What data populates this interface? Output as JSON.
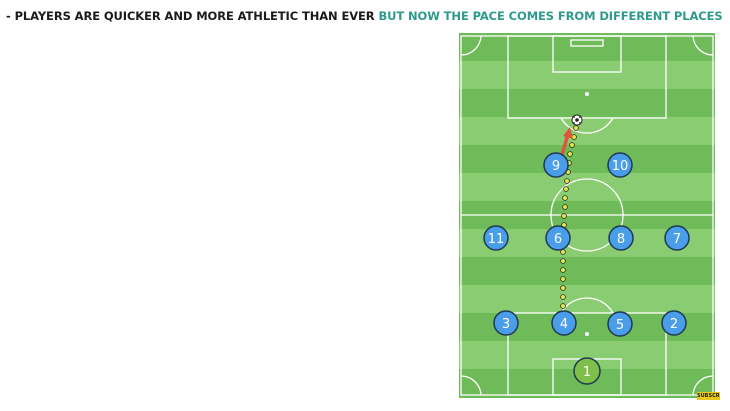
{
  "caption": {
    "lead": "- PLAYERS ARE QUICKER AND MORE ATHLETIC THAN EVER",
    "highlight": "BUT NOW THE PACE COMES FROM DIFFERENT PLACES"
  },
  "colors": {
    "caption_text": "#1b1b1b",
    "caption_highlight": "#2e9a8e",
    "pitch_light": "#8acc72",
    "pitch_dark": "#6fba59",
    "outfield_player": "#4a9de8",
    "goalkeeper": "#7dbf48",
    "run_path_dots": "#e5e84a",
    "pass_arrow": "#e2543a"
  },
  "players": [
    {
      "number": "9",
      "role": "outfield"
    },
    {
      "number": "10",
      "role": "outfield"
    },
    {
      "number": "11",
      "role": "outfield"
    },
    {
      "number": "6",
      "role": "outfield"
    },
    {
      "number": "8",
      "role": "outfield"
    },
    {
      "number": "7",
      "role": "outfield"
    },
    {
      "number": "3",
      "role": "outfield"
    },
    {
      "number": "4",
      "role": "outfield"
    },
    {
      "number": "5",
      "role": "outfield"
    },
    {
      "number": "2",
      "role": "outfield"
    },
    {
      "number": "1",
      "role": "goalkeeper"
    }
  ],
  "badge": "SUBSCRIBE"
}
